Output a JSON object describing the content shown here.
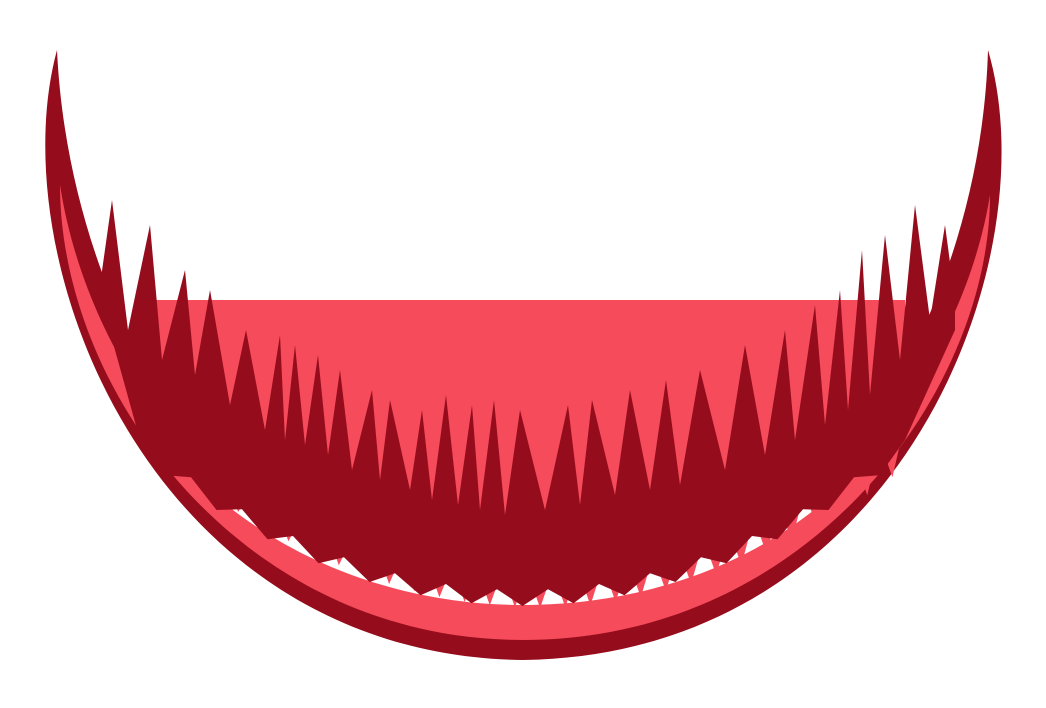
{
  "illustration": {
    "subject": "jagged-toothed-grin",
    "colors": {
      "background": "#ffffff",
      "outer_lip": "#950d1c",
      "inner_lip": "#f64b5b",
      "tooth_dark": "#950d1c",
      "tooth_light": "#f64b5b",
      "mouth_gap": "#ffffff"
    }
  }
}
